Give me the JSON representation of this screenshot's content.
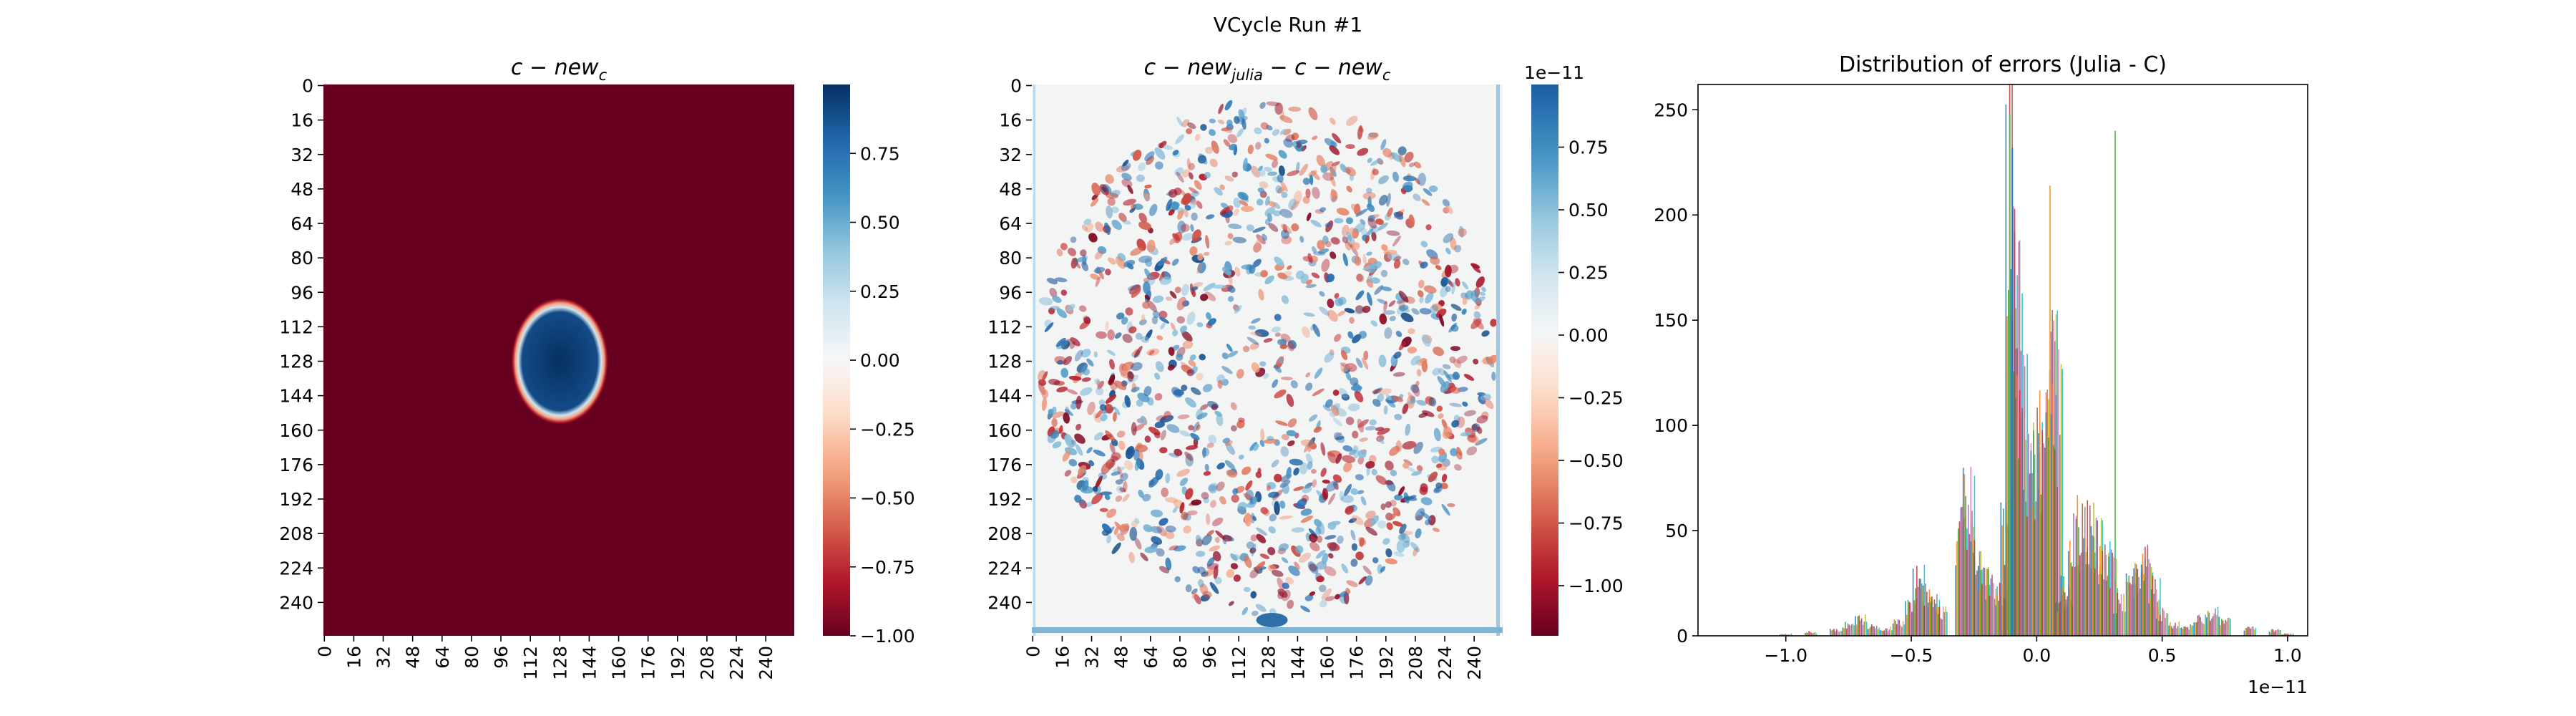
{
  "figure": {
    "suptitle": "VCycle Run #1"
  },
  "chart_data": [
    {
      "type": "heatmap",
      "title_main": "c − new",
      "title_sub": "c",
      "xlabel": "",
      "ylabel": "",
      "grid_size": 256,
      "x_ticks": [
        "0",
        "16",
        "32",
        "48",
        "64",
        "80",
        "96",
        "112",
        "128",
        "144",
        "160",
        "176",
        "192",
        "208",
        "224",
        "240"
      ],
      "y_ticks": [
        "0",
        "16",
        "32",
        "48",
        "64",
        "80",
        "96",
        "112",
        "128",
        "144",
        "160",
        "176",
        "192",
        "208",
        "224",
        "240"
      ],
      "colormap": "RdBu",
      "value_range": [
        -1.0,
        1.0
      ],
      "background_value": -1.0,
      "feature": {
        "shape": "ellipse",
        "center_row": 128,
        "center_col": 128,
        "radius_rows": 24,
        "radius_cols": 21,
        "value": 1.0
      },
      "colorbar_ticks": [
        "0.75",
        "0.50",
        "0.25",
        "0.00",
        "−0.25",
        "−0.50",
        "−0.75",
        "−1.00"
      ],
      "colorbar_tick_values": [
        0.75,
        0.5,
        0.25,
        0.0,
        -0.25,
        -0.5,
        -0.75,
        -1.0
      ],
      "colors": {
        "low": "#67001f",
        "mid": "#f7f7f7",
        "high": "#053061"
      }
    },
    {
      "type": "heatmap",
      "title_main": "c − new",
      "title_sub1": "julia",
      "title_mid": " − c − new",
      "title_sub2": "c",
      "xlabel": "",
      "ylabel": "",
      "grid_size": 256,
      "x_ticks": [
        "0",
        "16",
        "32",
        "48",
        "64",
        "80",
        "96",
        "112",
        "128",
        "144",
        "160",
        "176",
        "192",
        "208",
        "224",
        "240"
      ],
      "y_ticks": [
        "0",
        "16",
        "32",
        "48",
        "64",
        "80",
        "96",
        "112",
        "128",
        "144",
        "160",
        "176",
        "192",
        "208",
        "224",
        "240"
      ],
      "colormap": "RdBu",
      "value_range": [
        -1.2e-11,
        1e-11
      ],
      "pattern": "noise inside circular domain",
      "colorbar_ticks": [
        "0.75",
        "0.50",
        "0.25",
        "0.00",
        "−0.25",
        "−0.50",
        "−0.75",
        "−1.00"
      ],
      "colorbar_tick_values": [
        0.75,
        0.5,
        0.25,
        0.0,
        -0.25,
        -0.5,
        -0.75,
        -1.0
      ],
      "colorbar_range": [
        -1.2,
        1.0
      ],
      "colorbar_offset": "1e−11"
    },
    {
      "type": "bar",
      "subtype": "histogram",
      "title": "Distribution of errors (Julia - C)",
      "xlabel": "",
      "ylabel": "",
      "xlim": [
        -1.35,
        1.08
      ],
      "ylim": [
        0,
        262
      ],
      "x_ticks": [
        "−1.0",
        "−0.5",
        "0.0",
        "0.5",
        "1.0"
      ],
      "x_tick_values": [
        -1.0,
        -0.5,
        0.0,
        0.5,
        1.0
      ],
      "x_offset": "1e−11",
      "y_ticks": [
        "0",
        "50",
        "100",
        "150",
        "200",
        "250"
      ],
      "y_tick_values": [
        0,
        50,
        100,
        150,
        200,
        250
      ],
      "series": [
        {
          "x": [
            -1.0,
            -0.9,
            -0.8,
            -0.75,
            -0.7,
            -0.65,
            -0.6,
            -0.55,
            -0.5,
            -0.47,
            -0.44,
            -0.41,
            -0.38,
            -0.3,
            -0.27,
            -0.24,
            -0.21,
            -0.18,
            -0.14,
            -0.12,
            -0.1,
            -0.08,
            -0.06,
            -0.03,
            0.0,
            0.03,
            0.06,
            0.08,
            0.1,
            0.12,
            0.15,
            0.18,
            0.21,
            0.24,
            0.27,
            0.3,
            0.33,
            0.38,
            0.41,
            0.44,
            0.47,
            0.5,
            0.55,
            0.6,
            0.65,
            0.7,
            0.75,
            0.85,
            0.95,
            1.0
          ],
          "values": [
            1,
            2,
            3,
            6,
            9,
            5,
            4,
            7,
            16,
            30,
            24,
            20,
            14,
            55,
            70,
            48,
            30,
            28,
            24,
            60,
            232,
            180,
            120,
            100,
            95,
            110,
            150,
            120,
            20,
            25,
            52,
            60,
            58,
            50,
            40,
            36,
            18,
            28,
            32,
            38,
            25,
            12,
            6,
            5,
            9,
            12,
            8,
            4,
            3,
            1
          ]
        }
      ],
      "highlight_bars": [
        {
          "x": -0.11,
          "value": 248,
          "color": "#55bb55"
        },
        {
          "x": 0.05,
          "value": 214,
          "color": "#f0a030"
        },
        {
          "x": 0.31,
          "value": 240,
          "color": "#55bb55"
        },
        {
          "x": -0.1,
          "value": 232,
          "color": "#1f77b4"
        }
      ],
      "palette": [
        "#1f77b4",
        "#ff7f0e",
        "#2ca02c",
        "#d62728",
        "#9467bd",
        "#8c564b",
        "#e377c2",
        "#7f7f7f",
        "#bcbd22",
        "#17becf"
      ]
    }
  ]
}
